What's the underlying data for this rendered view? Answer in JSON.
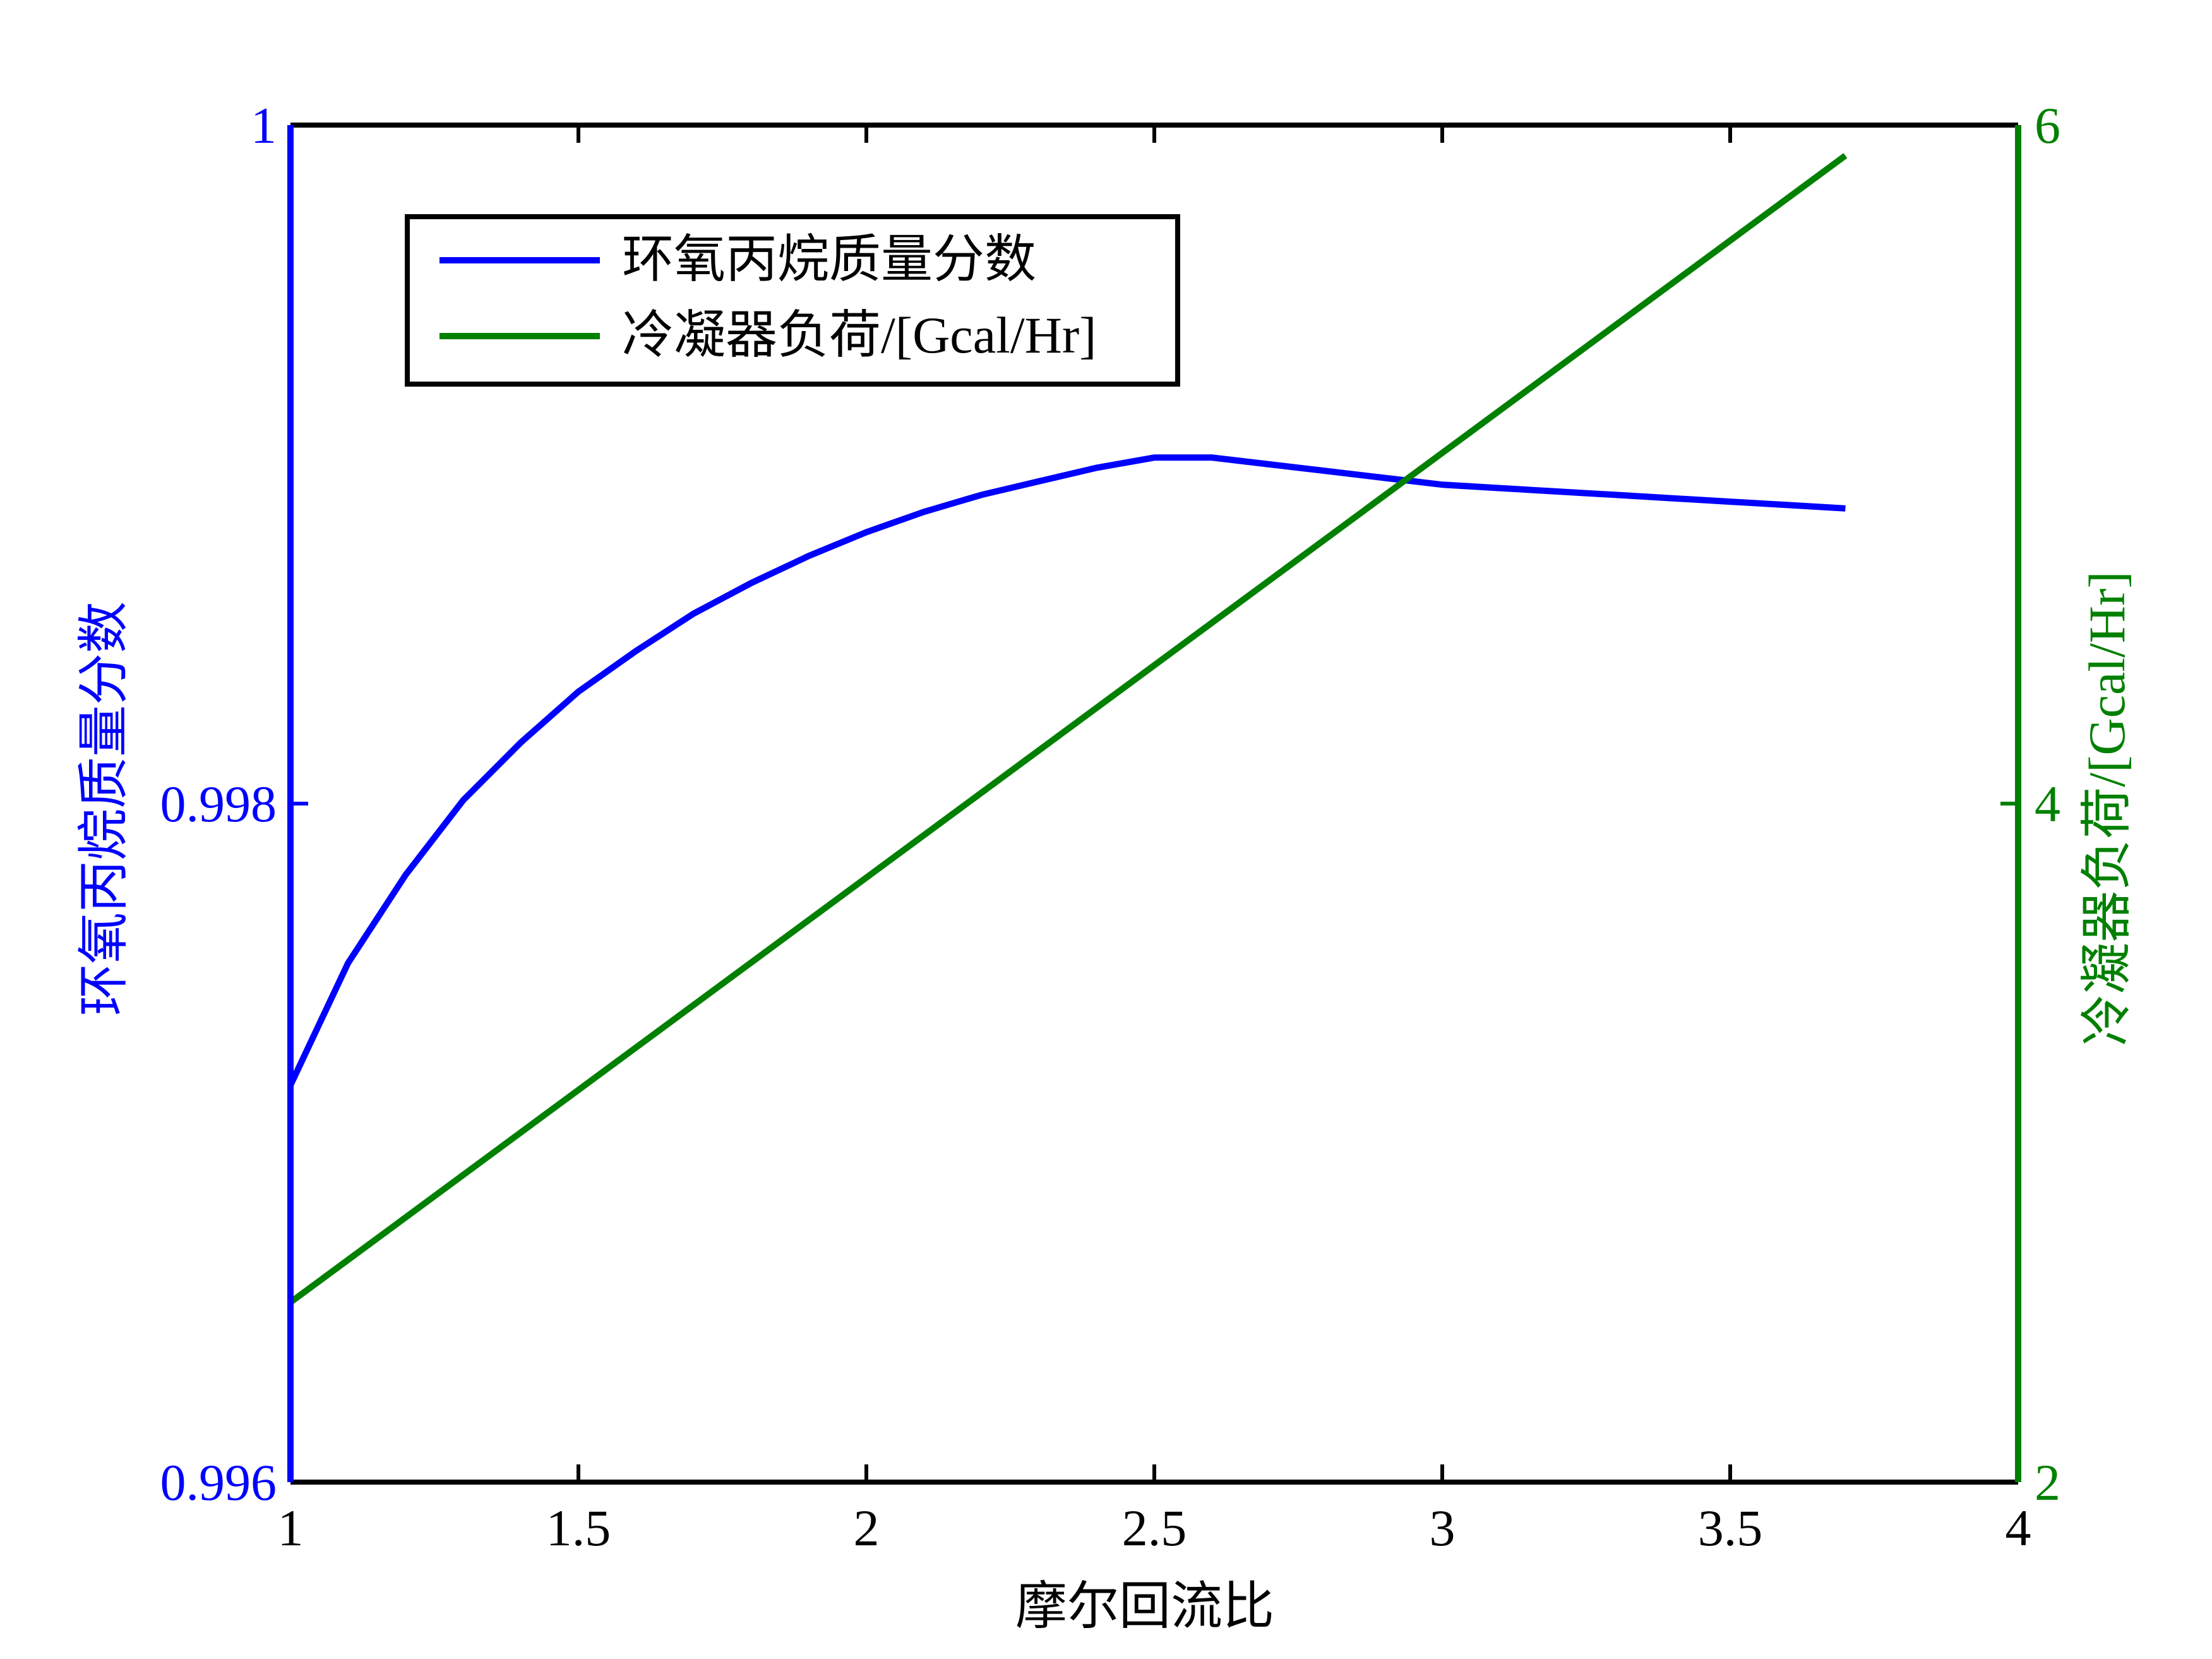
{
  "chart_data": {
    "type": "line",
    "xlabel": "摩尔回流比",
    "ylabel_left": "环氧丙烷质量分数",
    "ylabel_right": "冷凝器负荷/[Gcal/Hr]",
    "xlim": [
      1,
      4
    ],
    "ylim_left": [
      0.996,
      1
    ],
    "ylim_right": [
      2,
      6
    ],
    "x_ticks": [
      "1",
      "1.5",
      "2",
      "2.5",
      "3",
      "3.5",
      "4"
    ],
    "y_ticks_left": [
      "0.996",
      "0.998",
      "1"
    ],
    "y_ticks_right": [
      "2",
      "4",
      "6"
    ],
    "grid": false,
    "legend_position": "top-left",
    "colors": {
      "left_axis": "#0000ff",
      "right_axis": "#008000",
      "frame": "#000000"
    },
    "series": [
      {
        "name": "环氧丙烷质量分数",
        "axis": "left",
        "color": "#0000ff",
        "x": [
          1.0,
          1.1,
          1.2,
          1.3,
          1.4,
          1.5,
          1.6,
          1.7,
          1.8,
          1.9,
          2.0,
          2.1,
          2.2,
          2.3,
          2.4,
          2.5,
          2.6,
          2.7,
          2.8,
          2.9,
          3.0,
          3.1,
          3.2,
          3.3,
          3.4,
          3.5,
          3.6,
          3.7
        ],
        "y": [
          0.99717,
          0.99753,
          0.99779,
          0.99801,
          0.99818,
          0.99833,
          0.99845,
          0.99856,
          0.99865,
          0.99873,
          0.9988,
          0.99886,
          0.99891,
          0.99895,
          0.99899,
          0.99902,
          0.99902,
          0.999,
          0.99898,
          0.99896,
          0.99894,
          0.99893,
          0.99892,
          0.99891,
          0.9989,
          0.99889,
          0.99888,
          0.99887
        ]
      },
      {
        "name": "冷凝器负荷/[Gcal/Hr]",
        "axis": "right",
        "color": "#008000",
        "x": [
          1.0,
          3.7
        ],
        "y": [
          2.53,
          5.91
        ]
      }
    ]
  }
}
